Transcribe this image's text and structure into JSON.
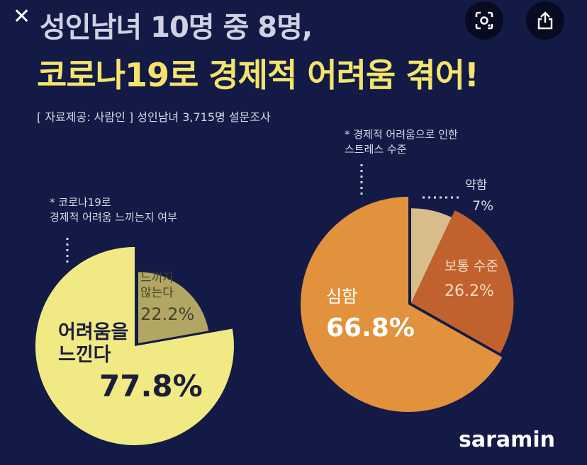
{
  "header": {
    "title_line1": "성인남녀 10명 중 8명,",
    "title_line2": "코로나19로 경제적 어려움 겪어!",
    "source": "[ 자료제공: 사람인 ] 성인남녀 3,715명 설문조사"
  },
  "overlay": {
    "close_glyph": "✕",
    "lens_icon": "lens-icon",
    "share_icon": "share-icon"
  },
  "brand": {
    "logo": "saramin"
  },
  "colors": {
    "background": "#131a46",
    "left_major": "#f1ea84",
    "left_minor": "#b1a664",
    "right_major": "#e2913d",
    "right_mid": "#c0612e",
    "right_minor": "#d8bd8b"
  },
  "chart_data": [
    {
      "type": "pie",
      "note": "* 코로나19로\n경제적 어려움 느끼는지 여부",
      "slices": [
        {
          "label": "어려움을\n느낀다",
          "value": 77.8,
          "display": "77.8%"
        },
        {
          "label": "느끼지\n않는다",
          "value": 22.2,
          "display": "22.2%"
        }
      ]
    },
    {
      "type": "pie",
      "note": "* 경제적 어려움으로 인한\n스트레스 수준",
      "slices": [
        {
          "label": "심함",
          "value": 66.8,
          "display": "66.8%"
        },
        {
          "label": "보통 수준",
          "value": 26.2,
          "display": "26.2%"
        },
        {
          "label": "약함",
          "value": 7,
          "display": "7%"
        }
      ]
    }
  ]
}
